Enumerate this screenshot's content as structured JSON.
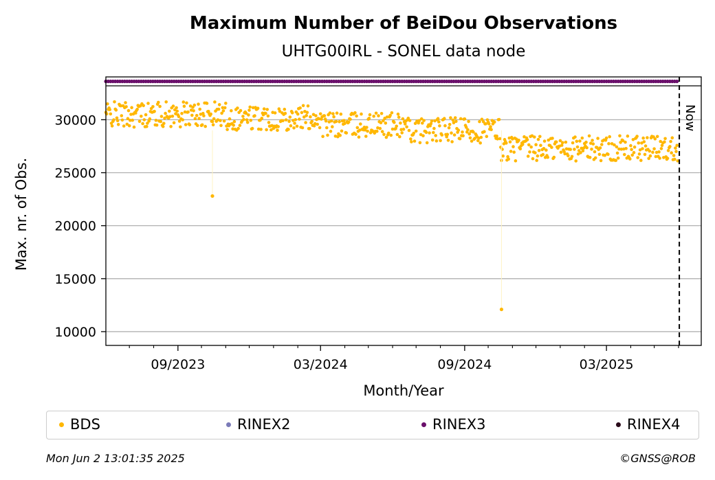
{
  "chart_data": {
    "type": "scatter",
    "title": "Maximum Number of BeiDou Observations",
    "subtitle": "UHTG00IRL - SONEL data node",
    "xlabel": "Month/Year",
    "ylabel": "Max. nr. of Obs.",
    "x_ticks": [
      "09/2023",
      "03/2024",
      "09/2024",
      "03/2025"
    ],
    "y_ticks": [
      "10000",
      "15000",
      "20000",
      "25000",
      "30000"
    ],
    "ylim": [
      8700,
      33200
    ],
    "xlim": [
      "2023-06-01",
      "2025-06-30"
    ],
    "grid": "horizontal",
    "now_label": "Now",
    "now_date": "2025-06-02",
    "series": [
      {
        "name": "BDS",
        "color": "#ffb700",
        "x_range": [
          "2023-06-01",
          "2025-05-31"
        ],
        "approx_levels": [
          {
            "from": "2023-06-01",
            "to": "2023-10-31",
            "value": 30500
          },
          {
            "from": "2023-11-01",
            "to": "2024-02-29",
            "value": 30200
          },
          {
            "from": "2024-03-01",
            "to": "2024-06-15",
            "value": 29500
          },
          {
            "from": "2024-06-16",
            "to": "2024-10-15",
            "value": 29000
          },
          {
            "from": "2024-10-16",
            "to": "2025-05-31",
            "value": 27300
          }
        ],
        "outliers": [
          {
            "x": "2023-10-15",
            "y": 22800
          },
          {
            "x": "2024-10-18",
            "y": 12100
          }
        ]
      },
      {
        "name": "RINEX2",
        "color": "#7b7bb8",
        "points": []
      },
      {
        "name": "RINEX3",
        "color": "#6a0f6b",
        "x_range": [
          "2023-06-01",
          "2025-05-31"
        ],
        "band": "availability strip"
      },
      {
        "name": "RINEX4",
        "color": "#2a0a1a",
        "points": []
      }
    ]
  },
  "legend": {
    "items": [
      {
        "label": "BDS",
        "color": "#ffb700"
      },
      {
        "label": "RINEX2",
        "color": "#7b7bb8"
      },
      {
        "label": "RINEX3",
        "color": "#6a0f6b"
      },
      {
        "label": "RINEX4",
        "color": "#2a0a1a"
      }
    ]
  },
  "footer": {
    "timestamp": "Mon Jun  2 13:01:35 2025",
    "copyright": "©GNSS@ROB"
  }
}
